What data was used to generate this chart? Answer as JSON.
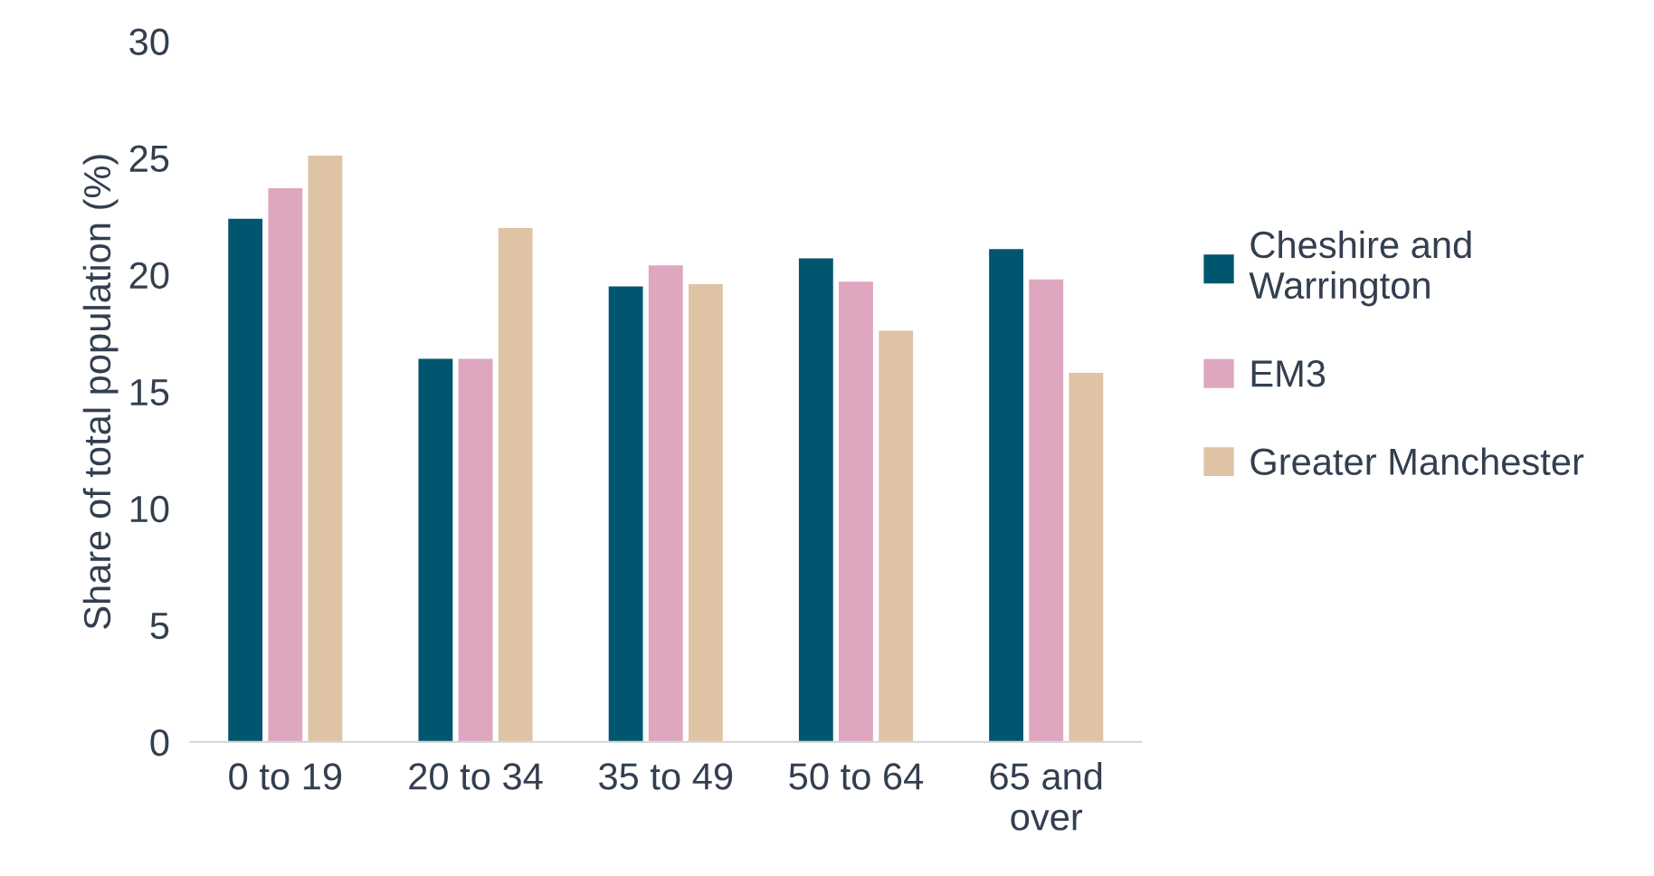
{
  "chart_data": {
    "type": "bar",
    "ylabel": "Share of total population (%)",
    "categories": [
      "0 to 19",
      "20 to 34",
      "35 to 49",
      "50 to 64",
      "65 and\nover"
    ],
    "series": [
      {
        "name": "Cheshire and\nWarrington",
        "color": "#00566e",
        "values": [
          22.4,
          16.4,
          19.5,
          20.7,
          21.1
        ]
      },
      {
        "name": "EM3",
        "color": "#dea6bf",
        "values": [
          23.7,
          16.4,
          20.4,
          19.7,
          19.8
        ]
      },
      {
        "name": "Greater Manchester",
        "color": "#dec3a4",
        "values": [
          25.1,
          22.0,
          19.6,
          17.6,
          15.8
        ]
      }
    ],
    "ylim": [
      0,
      30
    ],
    "yticks": [
      0,
      5,
      10,
      15,
      20,
      25,
      30
    ],
    "grid": false,
    "legend": "right"
  }
}
